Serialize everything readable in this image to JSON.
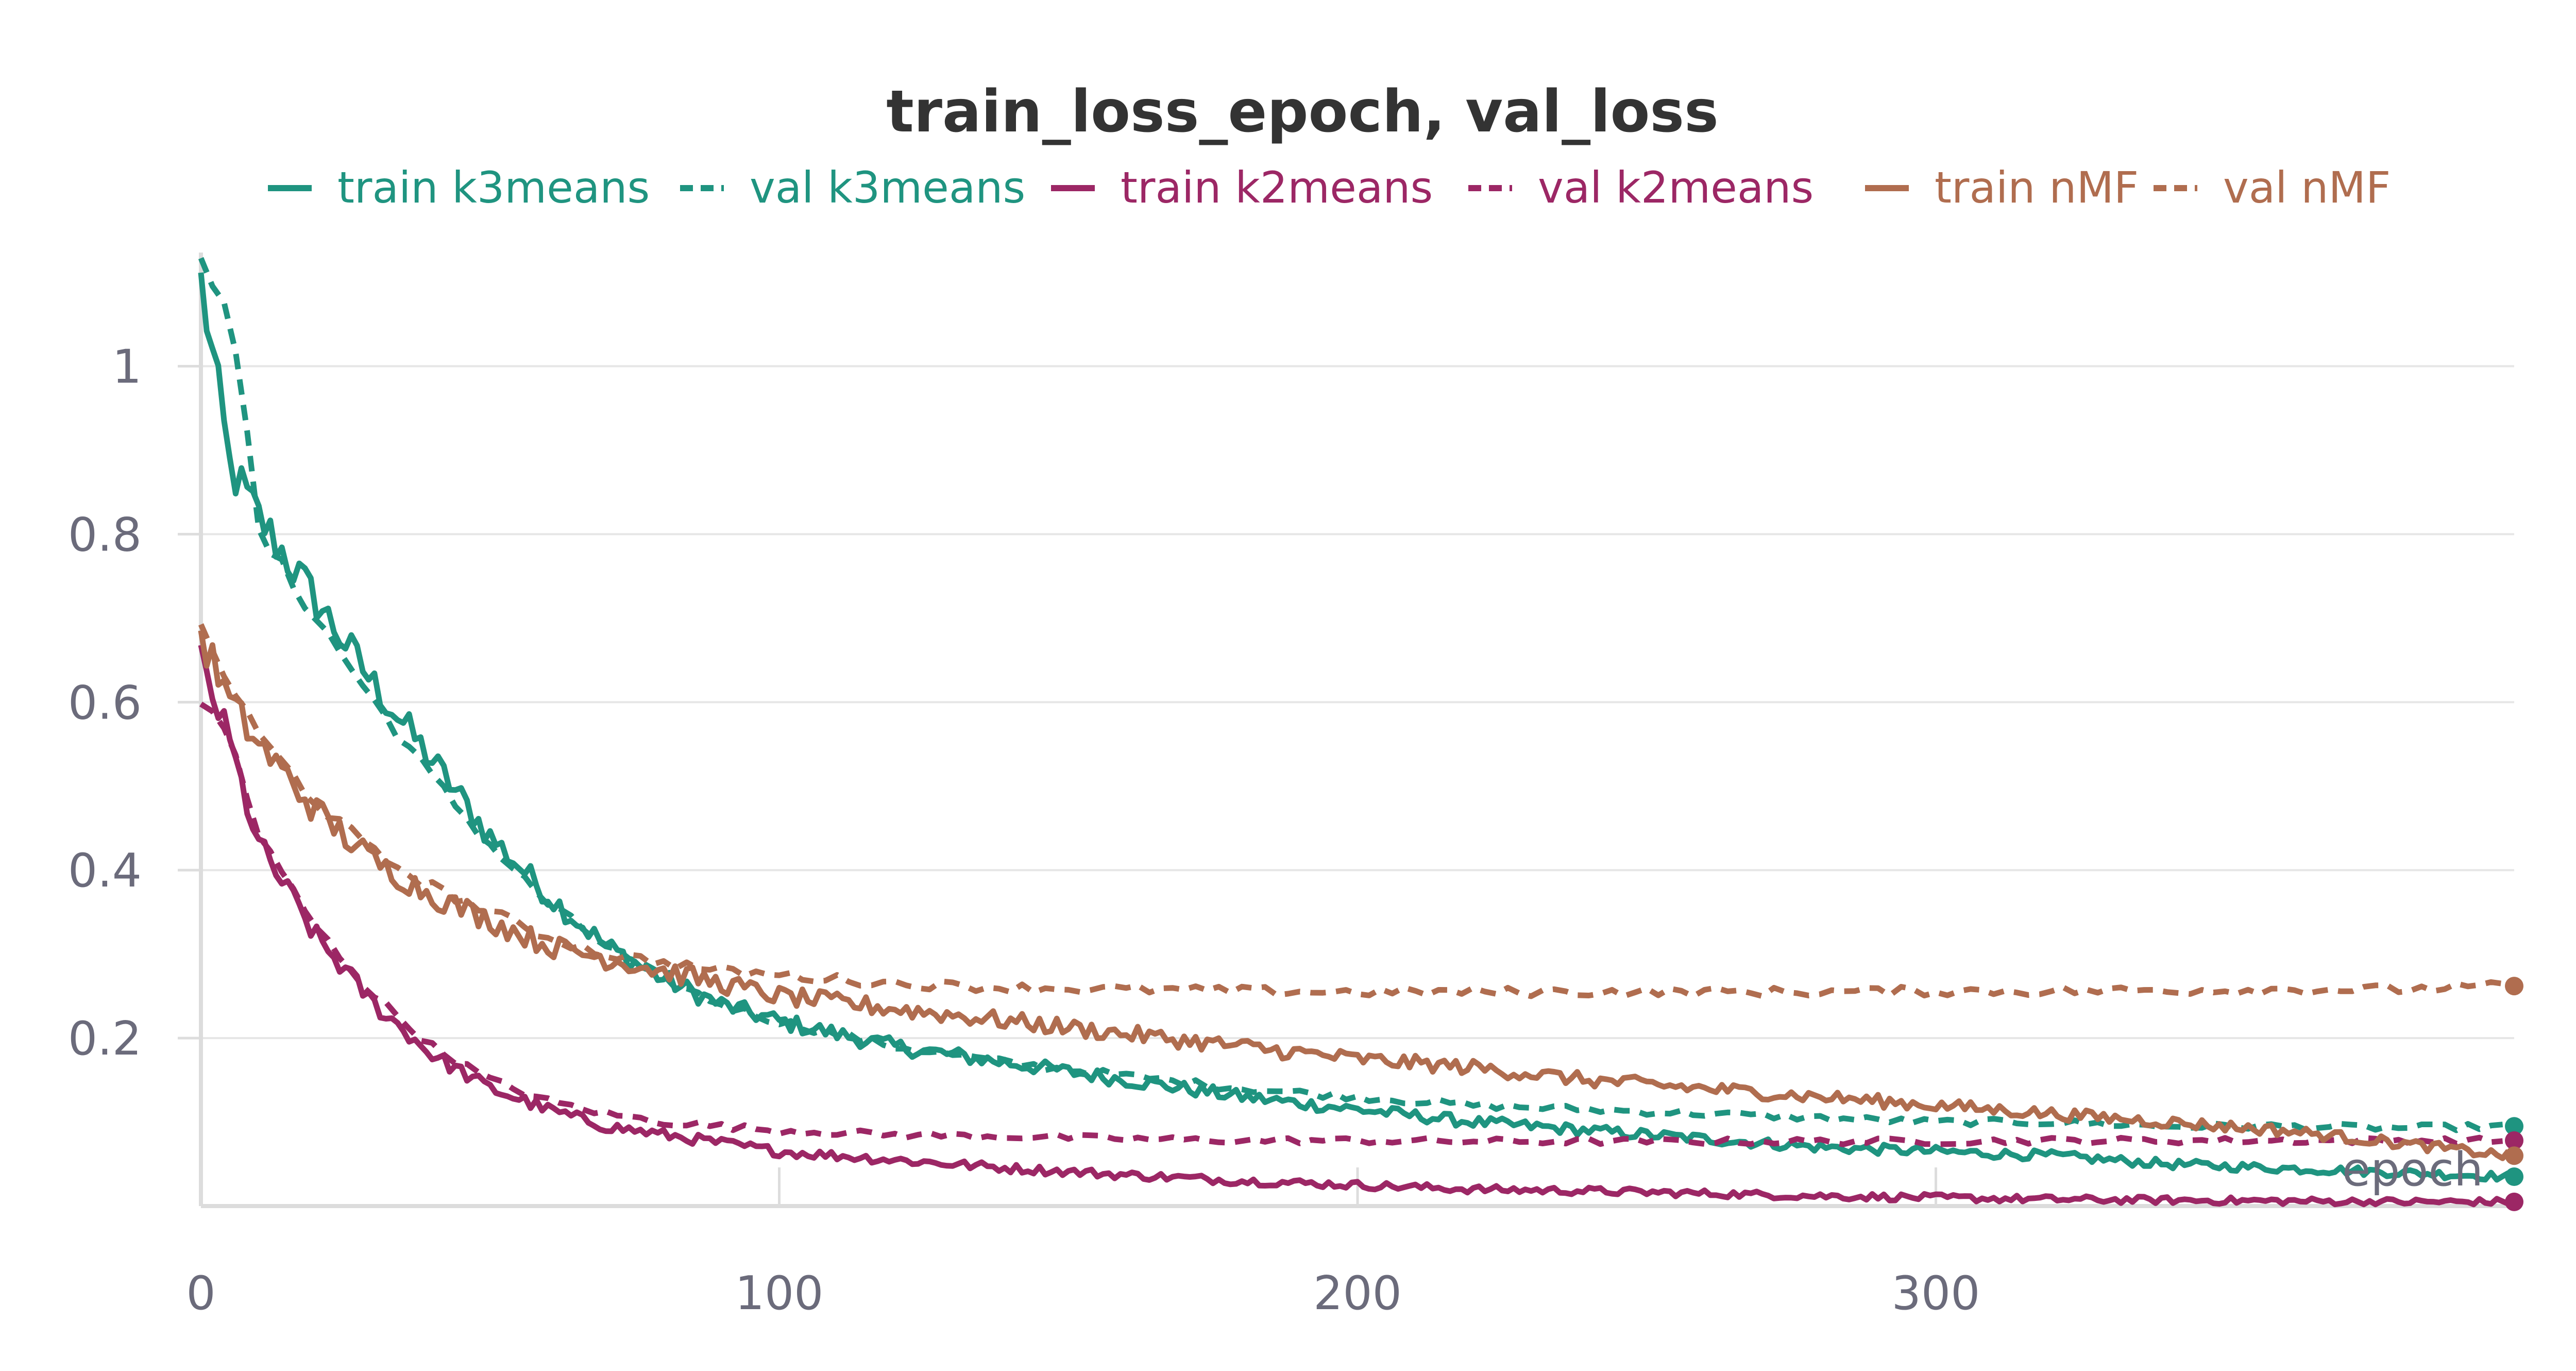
{
  "chart_data": {
    "type": "line",
    "title": "train_loss_epoch, val_loss",
    "xlabel": "epoch",
    "ylabel": "",
    "xlim": [
      0,
      400
    ],
    "ylim": [
      0,
      1.12
    ],
    "x_ticks": [
      0,
      100,
      200,
      300
    ],
    "x_tick_labels": [
      "0",
      "100",
      "200",
      "300"
    ],
    "y_ticks": [
      0.2,
      0.4,
      0.6,
      0.8,
      1.0
    ],
    "y_tick_labels": [
      "0.2",
      "0.4",
      "0.6",
      "0.8",
      "1"
    ],
    "grid": true,
    "legend_position": "top",
    "x": [
      0,
      5,
      10,
      20,
      30,
      40,
      50,
      60,
      70,
      80,
      90,
      100,
      120,
      140,
      160,
      180,
      200,
      220,
      240,
      260,
      280,
      300,
      320,
      340,
      360,
      380,
      399
    ],
    "series": [
      {
        "name": "train k3means",
        "color": "#1f9480",
        "dash": "solid",
        "values": [
          1.1,
          0.88,
          0.82,
          0.72,
          0.62,
          0.53,
          0.44,
          0.37,
          0.31,
          0.27,
          0.24,
          0.22,
          0.19,
          0.17,
          0.15,
          0.13,
          0.115,
          0.1,
          0.09,
          0.08,
          0.07,
          0.065,
          0.06,
          0.05,
          0.045,
          0.04,
          0.035
        ]
      },
      {
        "name": "val k3means",
        "color": "#1f9480",
        "dash": "dashed",
        "values": [
          1.12,
          1.08,
          0.8,
          0.7,
          0.6,
          0.51,
          0.43,
          0.36,
          0.31,
          0.27,
          0.24,
          0.22,
          0.19,
          0.17,
          0.155,
          0.14,
          0.13,
          0.12,
          0.115,
          0.11,
          0.105,
          0.1,
          0.1,
          0.095,
          0.095,
          0.093,
          0.095
        ]
      },
      {
        "name": "train k2means",
        "color": "#9c2765",
        "dash": "solid",
        "values": [
          0.65,
          0.55,
          0.43,
          0.32,
          0.24,
          0.18,
          0.14,
          0.115,
          0.095,
          0.085,
          0.075,
          0.065,
          0.055,
          0.045,
          0.037,
          0.03,
          0.025,
          0.02,
          0.018,
          0.015,
          0.012,
          0.01,
          0.008,
          0.007,
          0.006,
          0.005,
          0.005
        ]
      },
      {
        "name": "val k2means",
        "color": "#9c2765",
        "dash": "dashed",
        "values": [
          0.6,
          0.56,
          0.44,
          0.33,
          0.25,
          0.19,
          0.15,
          0.125,
          0.11,
          0.1,
          0.095,
          0.09,
          0.085,
          0.083,
          0.08,
          0.078,
          0.078,
          0.077,
          0.077,
          0.077,
          0.077,
          0.077,
          0.078,
          0.078,
          0.078,
          0.078,
          0.078
        ]
      },
      {
        "name": "train nMF",
        "color": "#b06d4f",
        "dash": "solid",
        "values": [
          0.68,
          0.6,
          0.55,
          0.47,
          0.41,
          0.37,
          0.34,
          0.31,
          0.295,
          0.28,
          0.265,
          0.25,
          0.235,
          0.22,
          0.205,
          0.19,
          0.175,
          0.165,
          0.15,
          0.14,
          0.13,
          0.12,
          0.11,
          0.1,
          0.09,
          0.075,
          0.06
        ]
      },
      {
        "name": "val nMF",
        "color": "#b06d4f",
        "dash": "dashed",
        "values": [
          0.69,
          0.62,
          0.56,
          0.48,
          0.42,
          0.38,
          0.35,
          0.32,
          0.3,
          0.29,
          0.28,
          0.275,
          0.265,
          0.26,
          0.258,
          0.256,
          0.255,
          0.255,
          0.255,
          0.255,
          0.255,
          0.256,
          0.256,
          0.257,
          0.258,
          0.258,
          0.262
        ]
      }
    ]
  }
}
